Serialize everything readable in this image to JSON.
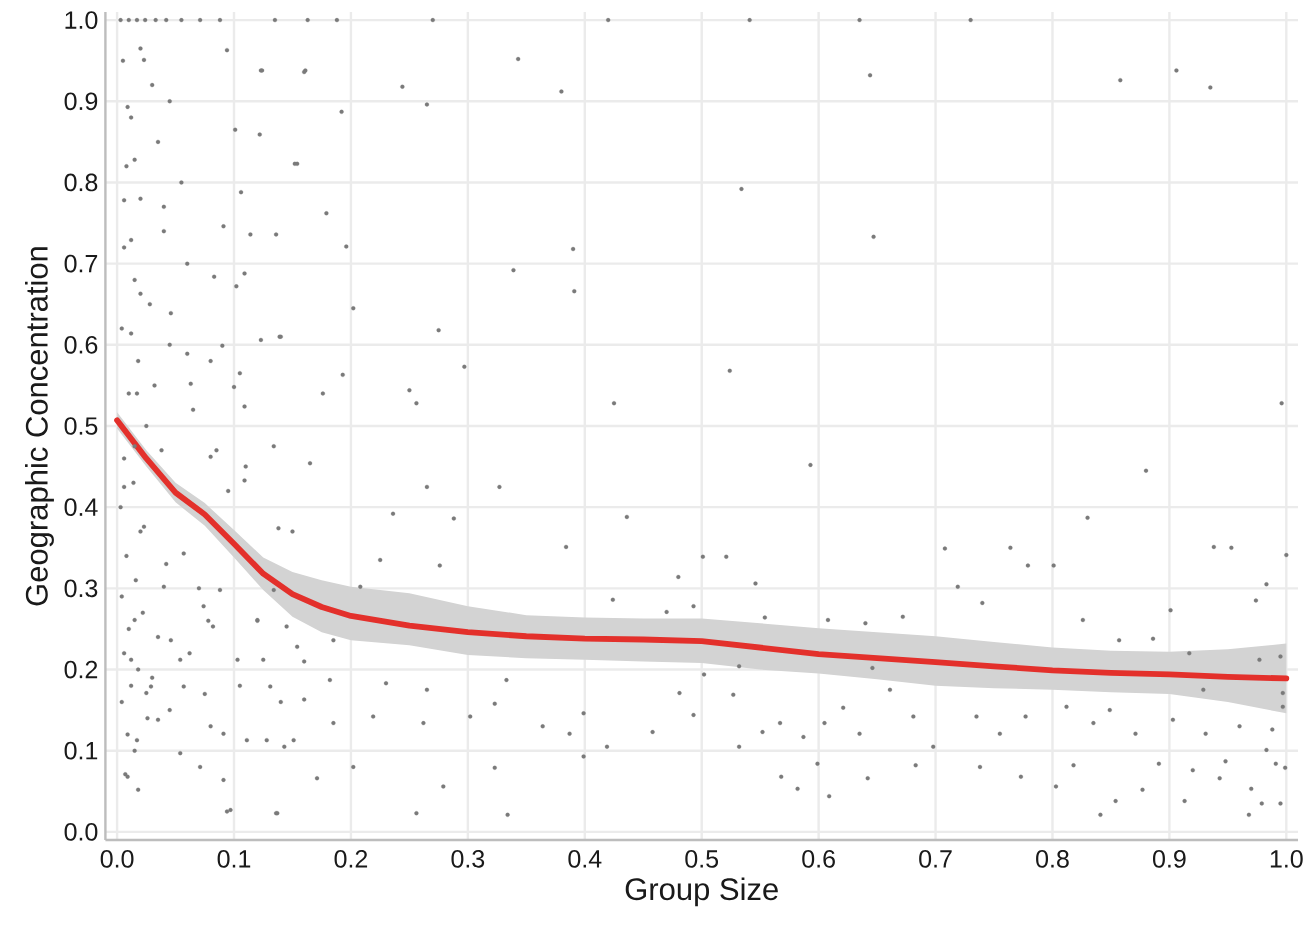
{
  "chart_data": {
    "type": "scatter",
    "xlabel": "Group Size",
    "ylabel": "Geographic Concentration",
    "xlim": [
      -0.01,
      1.01
    ],
    "ylim": [
      -0.01,
      1.01
    ],
    "xticks": [
      {
        "value": 0,
        "label": "0.0"
      },
      0.1,
      0.2,
      0.3,
      0.4,
      0.5,
      0.6,
      0.7,
      0.8,
      0.9,
      {
        "value": 1,
        "label": "1.0"
      }
    ],
    "yticks": [
      {
        "value": 0,
        "label": "0.0"
      },
      0.1,
      0.2,
      0.3,
      0.4,
      0.5,
      0.6,
      0.7,
      0.8,
      0.9,
      {
        "value": 1,
        "label": "1.0"
      }
    ],
    "grid": true,
    "series": [
      {
        "color": "#7a7a7a",
        "marker": "circle",
        "x": [
          0.541,
          0.635,
          0.73,
          0.644,
          0.858,
          0.906,
          0.935,
          0.534,
          0.647,
          0.524,
          0.996,
          0.593,
          0.88,
          0.135,
          0.163,
          0.188,
          0.27,
          0.42,
          0.071,
          0.088,
          0.343,
          0.38,
          0.244,
          0.265,
          0.123,
          0.161,
          0.192,
          0.152,
          0.179,
          0.196,
          0.39,
          0.339,
          0.391,
          0.202,
          0.275,
          0.297,
          0.25,
          0.256,
          0.425,
          0.193,
          0.176,
          0.139,
          0.102,
          0.094,
          0.101,
          0.091,
          0.105,
          0.007,
          0.018,
          0.097,
          0.136,
          0.256,
          0.334,
          0.171,
          0.202,
          0.279,
          0.323,
          0.399,
          0.419,
          0.387,
          0.364,
          0.302,
          0.262,
          0.219,
          0.185,
          0.151,
          0.128,
          0.091,
          0.071,
          0.054,
          0.265,
          0.323,
          0.23,
          0.182,
          0.125,
          0.082,
          0.054,
          0.025,
          0.088,
          0.134,
          0.145,
          0.185,
          0.208,
          0.225,
          0.276,
          0.236,
          0.288,
          0.265,
          0.327,
          0.384,
          0.424,
          0.436,
          0.333,
          0.399,
          0.501,
          0.521,
          0.48,
          0.546,
          0.83,
          0.708,
          0.764,
          0.779,
          0.801,
          0.938,
          0.953,
          0.983,
          1.0,
          0.974,
          0.719,
          0.74,
          0.672,
          0.608,
          0.554,
          0.493,
          0.47,
          0.826,
          0.901,
          0.532,
          0.502,
          0.646,
          0.481,
          0.527,
          0.458,
          0.493,
          0.532,
          0.552,
          0.567,
          0.587,
          0.605,
          0.635,
          0.568,
          0.582,
          0.599,
          0.609,
          0.642,
          0.683,
          0.698,
          0.738,
          0.773,
          0.803,
          0.818,
          0.841,
          0.854,
          0.877,
          0.913,
          0.92,
          0.943,
          0.968,
          0.979,
          0.97,
          0.995,
          0.991,
          0.999,
          0.988,
          0.997,
          0.997,
          0.983,
          0.96,
          0.948,
          0.931,
          0.903,
          0.891,
          0.871,
          0.849,
          0.835,
          0.812,
          0.777,
          0.755,
          0.735,
          0.681,
          0.661,
          0.621,
          0.929,
          0.886,
          0.917,
          0.977,
          0.995,
          0.857,
          0.64,
          0.003,
          0.01,
          0.017,
          0.024,
          0.033,
          0.042,
          0.055,
          0.005,
          0.02,
          0.03,
          0.012,
          0.045,
          0.008,
          0.035,
          0.055,
          0.02,
          0.04,
          0.006,
          0.06,
          0.015,
          0.028,
          0.004,
          0.045,
          0.018,
          0.032,
          0.01,
          0.065,
          0.025,
          0.006,
          0.038,
          0.08,
          0.085,
          0.014,
          0.003,
          0.02,
          0.008,
          0.042,
          0.016,
          0.004,
          0.022,
          0.01,
          0.035,
          0.006,
          0.018,
          0.03,
          0.012,
          0.004,
          0.045,
          0.026,
          0.009,
          0.015,
          0.07,
          0.062,
          0.075,
          0.078,
          0.095,
          0.11,
          0.12,
          0.105,
          0.14,
          0.16,
          0.15,
          0.124,
          0.16,
          0.122,
          0.154,
          0.106,
          0.114,
          0.136,
          0.083,
          0.109,
          0.14,
          0.123,
          0.09,
          0.06,
          0.063,
          0.1,
          0.109,
          0.134,
          0.08,
          0.109,
          0.165,
          0.138,
          0.057,
          0.04,
          0.074,
          0.12,
          0.154,
          0.103,
          0.131,
          0.16,
          0.057,
          0.035,
          0.08,
          0.111,
          0.143,
          0.009,
          0.091,
          0.094,
          0.137,
          0.012,
          0.015,
          0.023,
          0.006,
          0.015,
          0.017,
          0.012,
          0.02,
          0.012,
          0.006,
          0.015,
          0.009,
          0.023,
          0.04,
          0.046,
          0.029,
          0.046,
          0.017
        ],
        "values": [
          1.0,
          1.0,
          1.0,
          0.932,
          0.926,
          0.938,
          0.917,
          0.792,
          0.733,
          0.568,
          0.528,
          0.452,
          0.445,
          1.0,
          1.0,
          1.0,
          1.0,
          1.0,
          1.0,
          1.0,
          0.952,
          0.912,
          0.918,
          0.896,
          0.938,
          0.938,
          0.887,
          0.823,
          0.762,
          0.721,
          0.718,
          0.692,
          0.666,
          0.645,
          0.618,
          0.573,
          0.544,
          0.528,
          0.528,
          0.563,
          0.54,
          0.61,
          0.672,
          0.963,
          0.865,
          0.746,
          0.565,
          0.071,
          0.052,
          0.027,
          0.023,
          0.023,
          0.021,
          0.066,
          0.08,
          0.056,
          0.079,
          0.093,
          0.105,
          0.121,
          0.13,
          0.142,
          0.134,
          0.142,
          0.134,
          0.113,
          0.113,
          0.121,
          0.08,
          0.097,
          0.175,
          0.158,
          0.183,
          0.187,
          0.212,
          0.253,
          0.212,
          0.171,
          0.298,
          0.298,
          0.253,
          0.236,
          0.302,
          0.335,
          0.328,
          0.392,
          0.386,
          0.425,
          0.425,
          0.351,
          0.286,
          0.388,
          0.187,
          0.146,
          0.339,
          0.339,
          0.314,
          0.306,
          0.387,
          0.349,
          0.35,
          0.328,
          0.328,
          0.351,
          0.35,
          0.305,
          0.341,
          0.285,
          0.302,
          0.282,
          0.265,
          0.261,
          0.264,
          0.278,
          0.271,
          0.261,
          0.273,
          0.204,
          0.194,
          0.202,
          0.171,
          0.169,
          0.123,
          0.144,
          0.105,
          0.123,
          0.134,
          0.117,
          0.134,
          0.121,
          0.068,
          0.053,
          0.084,
          0.044,
          0.066,
          0.082,
          0.105,
          0.08,
          0.068,
          0.056,
          0.082,
          0.021,
          0.038,
          0.052,
          0.038,
          0.076,
          0.066,
          0.021,
          0.035,
          0.053,
          0.035,
          0.084,
          0.079,
          0.126,
          0.171,
          0.154,
          0.101,
          0.13,
          0.087,
          0.121,
          0.138,
          0.084,
          0.121,
          0.15,
          0.134,
          0.154,
          0.142,
          0.121,
          0.142,
          0.142,
          0.175,
          0.153,
          0.175,
          0.238,
          0.22,
          0.212,
          0.216,
          0.236,
          0.257,
          1.0,
          1.0,
          1.0,
          1.0,
          1.0,
          1.0,
          1.0,
          0.95,
          0.965,
          0.92,
          0.88,
          0.9,
          0.82,
          0.85,
          0.8,
          0.78,
          0.74,
          0.72,
          0.7,
          0.68,
          0.65,
          0.62,
          0.6,
          0.58,
          0.55,
          0.54,
          0.52,
          0.5,
          0.46,
          0.47,
          0.58,
          0.47,
          0.43,
          0.4,
          0.37,
          0.34,
          0.33,
          0.31,
          0.29,
          0.27,
          0.25,
          0.24,
          0.22,
          0.2,
          0.19,
          0.18,
          0.16,
          0.15,
          0.14,
          0.12,
          0.1,
          0.3,
          0.22,
          0.17,
          0.26,
          0.42,
          0.45,
          0.26,
          0.18,
          0.16,
          0.21,
          0.37,
          0.938,
          0.936,
          0.859,
          0.823,
          0.788,
          0.736,
          0.736,
          0.684,
          0.688,
          0.61,
          0.606,
          0.599,
          0.589,
          0.552,
          0.548,
          0.524,
          0.475,
          0.462,
          0.433,
          0.454,
          0.374,
          0.343,
          0.302,
          0.278,
          0.261,
          0.228,
          0.212,
          0.179,
          0.163,
          0.179,
          0.138,
          0.13,
          0.113,
          0.105,
          0.068,
          0.064,
          0.025,
          0.023,
          0.212,
          0.261,
          0.376,
          0.425,
          0.475,
          0.54,
          0.614,
          0.663,
          0.729,
          0.778,
          0.828,
          0.893,
          0.951,
          0.77,
          0.639,
          0.179,
          0.236,
          0.113
        ]
      },
      {
        "type": "line",
        "color": "#e3302b",
        "x": [
          0,
          0.025,
          0.05,
          0.075,
          0.1,
          0.125,
          0.15,
          0.175,
          0.2,
          0.25,
          0.3,
          0.35,
          0.4,
          0.45,
          0.5,
          0.55,
          0.6,
          0.65,
          0.7,
          0.75,
          0.8,
          0.85,
          0.9,
          0.95,
          1.0
        ],
        "values": [
          0.507,
          0.46,
          0.418,
          0.391,
          0.355,
          0.318,
          0.293,
          0.277,
          0.266,
          0.254,
          0.246,
          0.241,
          0.238,
          0.237,
          0.235,
          0.227,
          0.219,
          0.214,
          0.209,
          0.204,
          0.199,
          0.196,
          0.194,
          0.191,
          0.189
        ],
        "upper": [
          0.517,
          0.47,
          0.43,
          0.405,
          0.372,
          0.338,
          0.32,
          0.31,
          0.302,
          0.294,
          0.278,
          0.267,
          0.264,
          0.263,
          0.263,
          0.257,
          0.251,
          0.246,
          0.241,
          0.234,
          0.227,
          0.223,
          0.222,
          0.225,
          0.232
        ],
        "lower": [
          0.497,
          0.45,
          0.406,
          0.377,
          0.338,
          0.298,
          0.265,
          0.246,
          0.236,
          0.23,
          0.218,
          0.214,
          0.212,
          0.21,
          0.208,
          0.2,
          0.195,
          0.188,
          0.18,
          0.177,
          0.175,
          0.172,
          0.17,
          0.16,
          0.146
        ]
      }
    ]
  }
}
